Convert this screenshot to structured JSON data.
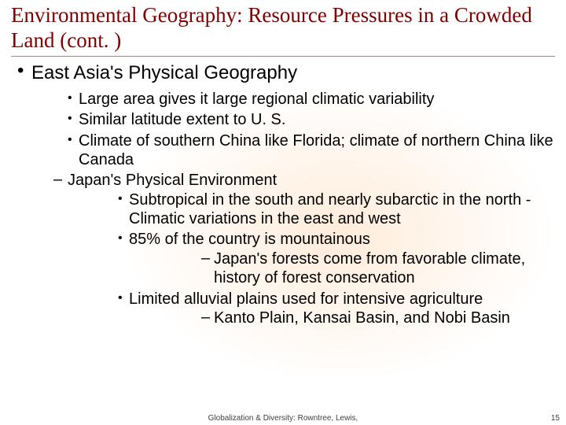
{
  "title": "Environmental Geography: Resource Pressures in a Crowded Land (cont. )",
  "colors": {
    "title": "#800000",
    "text": "#000000",
    "rule": "#b08080",
    "background": "#ffffff"
  },
  "fonts": {
    "title_family": "Garamond",
    "title_size_pt": 27,
    "body_family": "Arial",
    "level1_size_pt": 24,
    "level2_size_pt": 20
  },
  "outline": {
    "level1": [
      {
        "text": "East Asia's Physical Geography",
        "children": [
          {
            "type": "bullet",
            "text": "Large area gives it large regional climatic variability"
          },
          {
            "type": "bullet",
            "text": "Similar latitude extent to U. S."
          },
          {
            "type": "bullet",
            "text": "Climate of southern China like Florida; climate of northern China like Canada"
          },
          {
            "type": "dash",
            "text": "Japan's Physical Environment",
            "children": [
              {
                "type": "bullet",
                "text": "Subtropical in the south and nearly subarctic in the north - Climatic variations in the east and west"
              },
              {
                "type": "bullet",
                "text": "85% of the country is mountainous",
                "children": [
                  {
                    "type": "dash",
                    "text": "Japan's forests come from favorable climate, history of forest conservation"
                  }
                ]
              },
              {
                "type": "bullet",
                "text": "Limited alluvial plains used for intensive agriculture",
                "children": [
                  {
                    "type": "dash",
                    "text": "Kanto Plain, Kansai Basin, and Nobi Basin"
                  }
                ]
              }
            ]
          }
        ]
      }
    ]
  },
  "footer": "Globalization & Diversity: Rowntree, Lewis,",
  "page_number": "15"
}
